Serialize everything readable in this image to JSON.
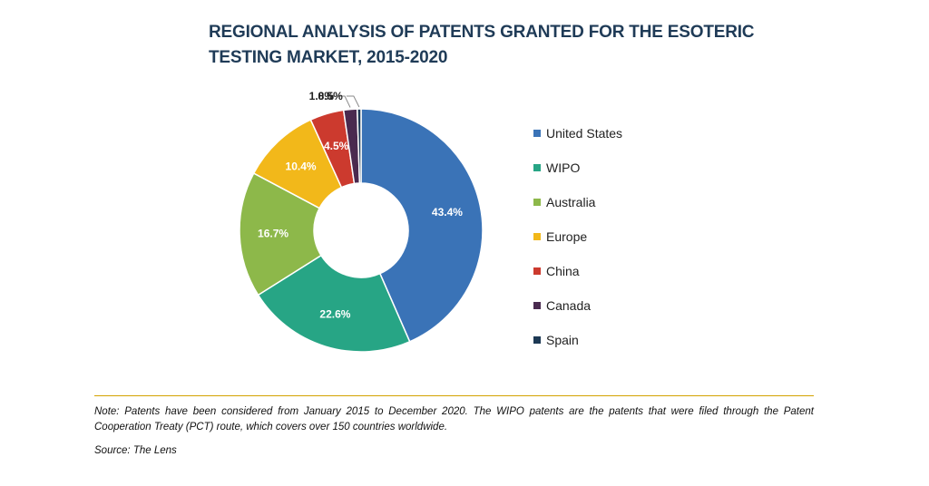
{
  "chart_data": {
    "type": "pie",
    "donut": true,
    "title": "REGIONAL ANALYSIS OF PATENTS GRANTED FOR THE ESOTERIC TESTING MARKET, 2015-2020",
    "categories": [
      "United States",
      "WIPO",
      "Australia",
      "Europe",
      "China",
      "Canada",
      "Spain"
    ],
    "values": [
      43.4,
      22.6,
      16.7,
      10.4,
      4.5,
      1.8,
      0.5
    ],
    "labels": [
      "43.4%",
      "22.6%",
      "16.7%",
      "10.4%",
      "4.5%",
      "1.8%",
      "0.5%"
    ],
    "colors": [
      "#3a73b7",
      "#27a585",
      "#8db84a",
      "#f2b81a",
      "#cc3a2e",
      "#4a2a4f",
      "#1d3954"
    ],
    "legend_position": "right"
  },
  "note": "Note: Patents have been considered from January 2015 to December 2020. The WIPO patents are the patents that were filed through the Patent Cooperation Treaty (PCT) route, which covers over 150 countries worldwide.",
  "source": "Source: The Lens"
}
